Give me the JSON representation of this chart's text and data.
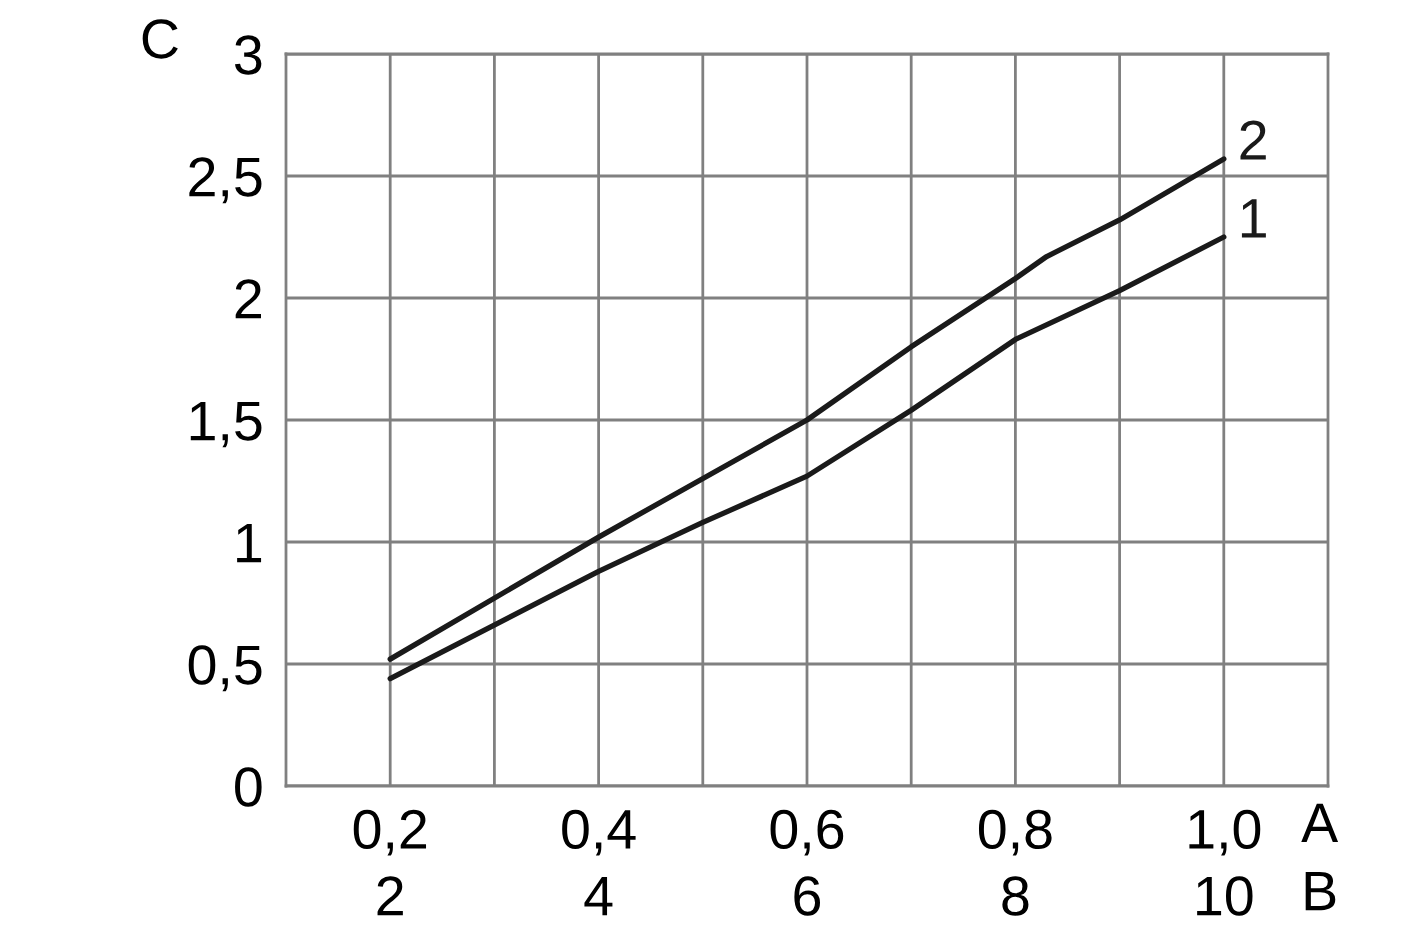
{
  "chart_data": {
    "type": "line",
    "xlabel": "A",
    "x2label": "B",
    "ylabel": "C",
    "xlim": [
      0.1,
      1.1
    ],
    "xticks": [
      {
        "value": 0.2,
        "label": "0,2"
      },
      {
        "value": 0.3,
        "label": null
      },
      {
        "value": 0.4,
        "label": "0,4"
      },
      {
        "value": 0.5,
        "label": null
      },
      {
        "value": 0.6,
        "label": "0,6"
      },
      {
        "value": 0.7,
        "label": null
      },
      {
        "value": 0.8,
        "label": "0,8"
      },
      {
        "value": 0.9,
        "label": null
      },
      {
        "value": 1.0,
        "label": "1,0"
      }
    ],
    "x2lim": [
      1,
      11
    ],
    "x2ticks": [
      2,
      4,
      6,
      8,
      10
    ],
    "ylim": [
      0,
      3
    ],
    "yticks": [
      0,
      {
        "value": 0.5,
        "label": "0,5"
      },
      1,
      {
        "value": 1.5,
        "label": "1,5"
      },
      2,
      {
        "value": 2.5,
        "label": "2,5"
      },
      3
    ],
    "grid": true,
    "series": [
      {
        "name": "1",
        "color": "#1a1a1a",
        "x": [
          0.2,
          0.4,
          0.5,
          0.6,
          0.7,
          0.8,
          0.9,
          1.0
        ],
        "values": [
          0.44,
          0.88,
          1.08,
          1.27,
          1.54,
          1.83,
          2.03,
          2.25
        ]
      },
      {
        "name": "2",
        "color": "#1a1a1a",
        "x": [
          0.2,
          0.4,
          0.6,
          0.7,
          0.8,
          0.83,
          0.9,
          1.0
        ],
        "values": [
          0.52,
          1.02,
          1.5,
          1.8,
          2.08,
          2.17,
          2.32,
          2.57
        ]
      }
    ]
  }
}
